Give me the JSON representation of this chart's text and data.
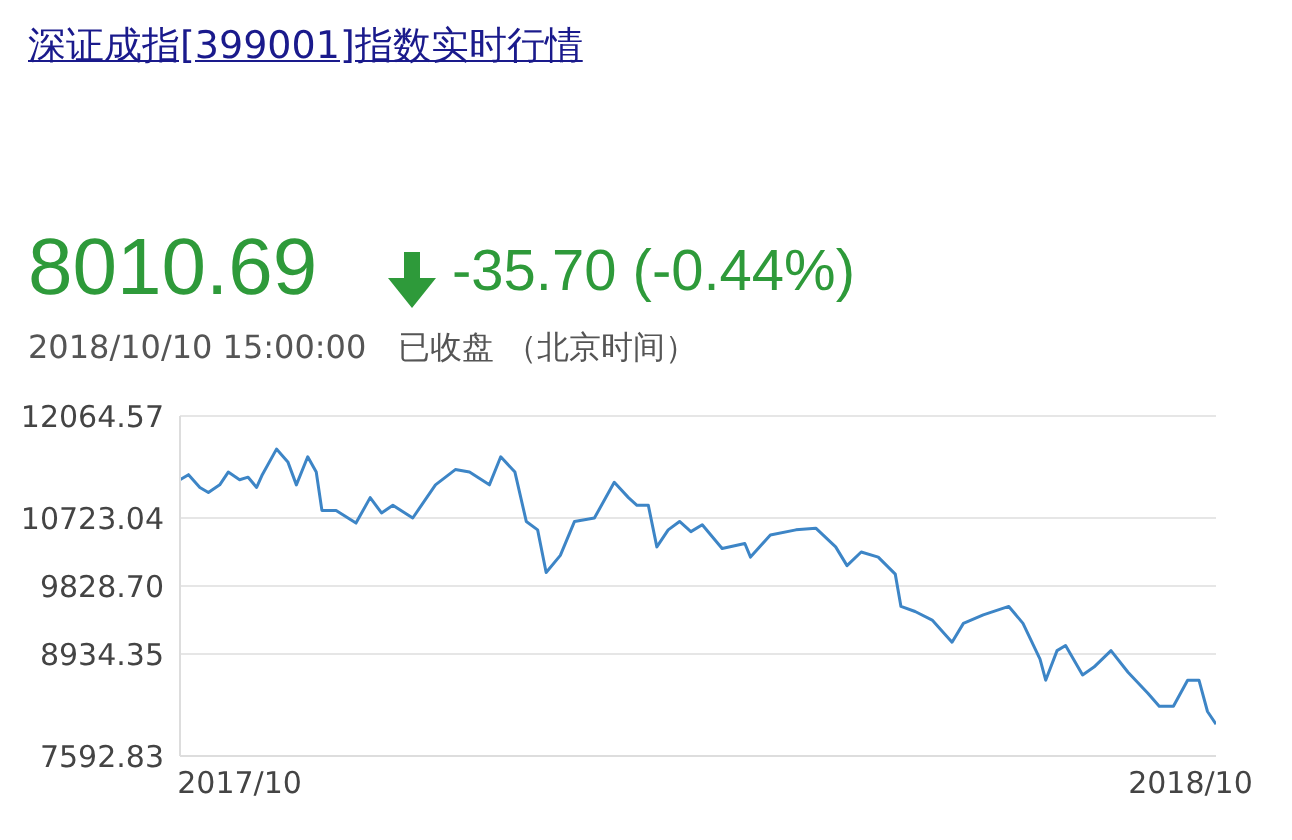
{
  "chart_data": {
    "type": "line",
    "title": "深证成指[399001]指数实时行情",
    "annotations": [
      "8010.69",
      "-35.70 (-0.44%)",
      "2018/10/10 15:00:00　已收盘 （北京时间）"
    ],
    "x": [
      "2017-10-10",
      "2017-10-13",
      "2017-10-17",
      "2017-10-20",
      "2017-10-24",
      "2017-10-27",
      "2017-10-31",
      "2017-11-03",
      "2017-11-06",
      "2017-11-08",
      "2017-11-13",
      "2017-11-17",
      "2017-11-20",
      "2017-11-24",
      "2017-11-27",
      "2017-11-29",
      "2017-12-04",
      "2017-12-11",
      "2017-12-16",
      "2017-12-20",
      "2017-12-24",
      "2017-12-31",
      "2018-01-08",
      "2018-01-15",
      "2018-01-20",
      "2018-01-27",
      "2018-01-31",
      "2018-02-05",
      "2018-02-09",
      "2018-02-13",
      "2018-02-16",
      "2018-02-21",
      "2018-02-26",
      "2018-03-05",
      "2018-03-12",
      "2018-03-17",
      "2018-03-20",
      "2018-03-24",
      "2018-03-27",
      "2018-03-31",
      "2018-04-04",
      "2018-04-08",
      "2018-04-12",
      "2018-04-19",
      "2018-04-27",
      "2018-04-29",
      "2018-05-06",
      "2018-05-15",
      "2018-05-22",
      "2018-05-29",
      "2018-06-02",
      "2018-06-07",
      "2018-06-13",
      "2018-06-19",
      "2018-06-21",
      "2018-06-26",
      "2018-07-02",
      "2018-07-09",
      "2018-07-13",
      "2018-07-20",
      "2018-07-29",
      "2018-08-03",
      "2018-08-09",
      "2018-08-11",
      "2018-08-15",
      "2018-08-18",
      "2018-08-24",
      "2018-08-28",
      "2018-09-03",
      "2018-09-09",
      "2018-09-16",
      "2018-09-20",
      "2018-09-25",
      "2018-09-30",
      "2018-10-04",
      "2018-10-07",
      "2018-10-10"
    ],
    "series": [
      {
        "color": "#3d85c6",
        "values": [
          11226,
          11293,
          11125,
          11058,
          11159,
          11327,
          11226,
          11260,
          11125,
          11293,
          11629,
          11461,
          11159,
          11528,
          11327,
          10823,
          10823,
          10656,
          10991,
          10790,
          10890,
          10723,
          11159,
          11360,
          11327,
          11159,
          11528,
          11327,
          10678,
          10567,
          10007,
          10231,
          10678,
          10723,
          11192,
          10991,
          10890,
          10890,
          10343,
          10567,
          10678,
          10544,
          10634,
          10321,
          10388,
          10209,
          10499,
          10567,
          10589,
          10343,
          10097,
          10276,
          10209,
          9985,
          9560,
          9493,
          9381,
          9090,
          9337,
          9449,
          9560,
          9337,
          8866,
          8590,
          8979,
          9046,
          8659,
          8762,
          8979,
          8694,
          8418,
          8246,
          8246,
          8590,
          8590,
          8178,
          8010.69
        ]
      }
    ],
    "xlim": [
      "2017-10-10",
      "2018-10-10"
    ],
    "xticks": [
      {
        "value": "2017-10-31",
        "label": "2017/10"
      },
      {
        "value": "2018-10-01",
        "label": "2018/10"
      }
    ],
    "ylim": [
      7592.83,
      12064.57
    ],
    "yticks": [
      {
        "value": 7592.83,
        "label": "7592.83"
      },
      {
        "value": 8934.35,
        "label": "8934.35"
      },
      {
        "value": 9828.7,
        "label": "9828.70"
      },
      {
        "value": 10723.04,
        "label": "10723.04"
      },
      {
        "value": 12064.57,
        "label": "12064.57"
      }
    ],
    "grid": "y",
    "legend": false,
    "marker": "none",
    "line_style": "solid"
  }
}
